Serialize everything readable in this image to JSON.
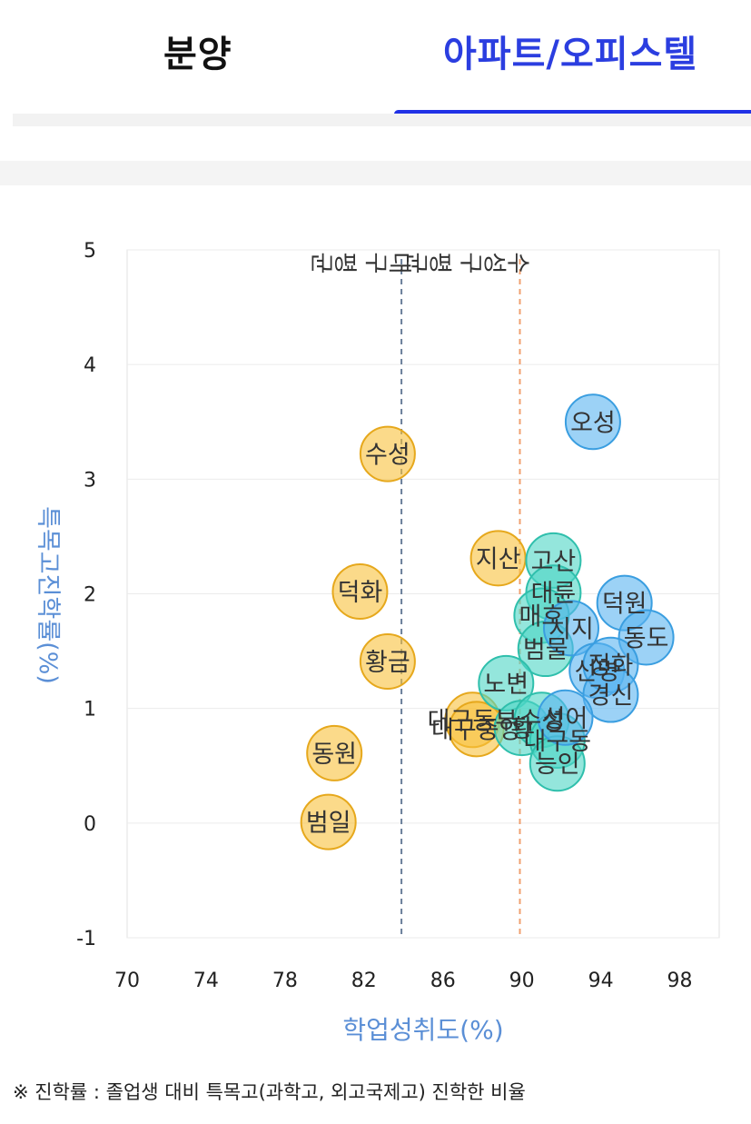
{
  "tabs": [
    {
      "label": "분양",
      "active": false
    },
    {
      "label": "아파트/오피스텔",
      "active": true
    }
  ],
  "colors": {
    "active_tab": "#2b3ee0",
    "daegu_group": "#f9c23c",
    "suseong_group": "#4dd6c4",
    "top_group": "#5ab4f0",
    "axis_title": "#5b8fd6"
  },
  "chart_data": {
    "type": "scatter",
    "xlabel": "학업성취도(%)",
    "ylabel": "특목고진학률(%)",
    "xlim": [
      70,
      100
    ],
    "ylim": [
      -1,
      5
    ],
    "xticks": [
      "70",
      "74",
      "78",
      "82",
      "86",
      "90",
      "94",
      "98"
    ],
    "yticks": [
      "5",
      "4",
      "3",
      "2",
      "1",
      "0",
      "-1"
    ],
    "grid": true,
    "reference_lines": [
      {
        "label": "대구 평균",
        "x": 83.9,
        "color": "#6a7f9a"
      },
      {
        "label": "수성구 평균",
        "x": 89.9,
        "color": "#f0a070"
      }
    ],
    "points": [
      {
        "label": "수성",
        "x": 83.2,
        "y": 3.22,
        "group": "yellow"
      },
      {
        "label": "덕화",
        "x": 81.8,
        "y": 2.02,
        "group": "yellow"
      },
      {
        "label": "황금",
        "x": 83.2,
        "y": 1.41,
        "group": "yellow"
      },
      {
        "label": "동원",
        "x": 80.5,
        "y": 0.61,
        "group": "yellow"
      },
      {
        "label": "범일",
        "x": 80.2,
        "y": 0.01,
        "group": "yellow"
      },
      {
        "label": "지산",
        "x": 88.8,
        "y": 2.31,
        "group": "yellow"
      },
      {
        "label": "대구동부",
        "x": 87.5,
        "y": 0.9,
        "group": "yellow"
      },
      {
        "label": "대구중앙",
        "x": 87.7,
        "y": 0.82,
        "group": "yellow"
      },
      {
        "label": "고산",
        "x": 91.6,
        "y": 2.29,
        "group": "teal"
      },
      {
        "label": "대륜",
        "x": 91.6,
        "y": 2.01,
        "group": "teal"
      },
      {
        "label": "매호",
        "x": 91.0,
        "y": 1.81,
        "group": "teal"
      },
      {
        "label": "범물",
        "x": 91.2,
        "y": 1.52,
        "group": "teal"
      },
      {
        "label": "노변",
        "x": 89.2,
        "y": 1.22,
        "group": "teal"
      },
      {
        "label": "황",
        "x": 90.0,
        "y": 0.83,
        "group": "teal"
      },
      {
        "label": "수성",
        "x": 91.0,
        "y": 0.9,
        "group": "teal"
      },
      {
        "label": "대구동",
        "x": 91.8,
        "y": 0.72,
        "group": "teal"
      },
      {
        "label": "능인",
        "x": 91.8,
        "y": 0.52,
        "group": "teal"
      },
      {
        "label": "오성",
        "x": 93.6,
        "y": 3.5,
        "group": "blue"
      },
      {
        "label": "덕원",
        "x": 95.2,
        "y": 1.92,
        "group": "blue"
      },
      {
        "label": "동도",
        "x": 96.3,
        "y": 1.62,
        "group": "blue"
      },
      {
        "label": "시지",
        "x": 92.5,
        "y": 1.7,
        "group": "blue"
      },
      {
        "label": "신명",
        "x": 93.8,
        "y": 1.33,
        "group": "blue"
      },
      {
        "label": "정화",
        "x": 94.5,
        "y": 1.38,
        "group": "blue"
      },
      {
        "label": "경신",
        "x": 94.5,
        "y": 1.12,
        "group": "blue"
      },
      {
        "label": "성어",
        "x": 92.2,
        "y": 0.92,
        "group": "blue"
      }
    ]
  },
  "footnote": "※ 진학률 : 졸업생 대비 특목고(과학고, 외고국제고) 진학한 비율"
}
